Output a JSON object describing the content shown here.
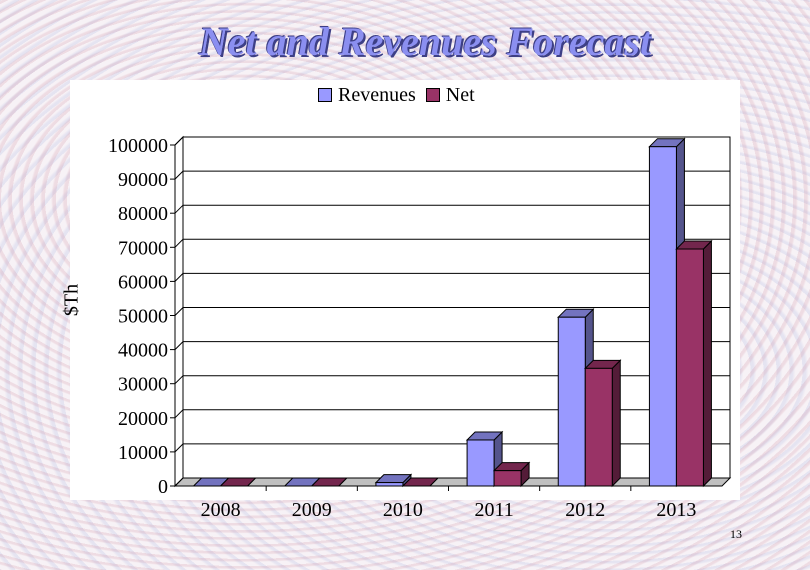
{
  "page": {
    "number": "13"
  },
  "colors": {
    "revenues": "#9999ff",
    "net": "#993366",
    "title": "#8b8ff0"
  },
  "chart_data": {
    "type": "bar",
    "title": "Net and Revenues Forecast",
    "xlabel": "",
    "ylabel": "$Th",
    "categories": [
      "2008",
      "2009",
      "2010",
      "2011",
      "2012",
      "2013"
    ],
    "series": [
      {
        "name": "Revenues",
        "values": [
          0,
          0,
          1000,
          13500,
          49500,
          99500
        ]
      },
      {
        "name": "Net",
        "values": [
          0,
          0,
          0,
          4500,
          34500,
          69500
        ]
      }
    ],
    "ylim": [
      0,
      100000
    ],
    "yticks": [
      "0",
      "10000",
      "20000",
      "30000",
      "40000",
      "50000",
      "60000",
      "70000",
      "80000",
      "90000",
      "100000"
    ],
    "grid": true,
    "legend": "top",
    "style": "3d"
  }
}
